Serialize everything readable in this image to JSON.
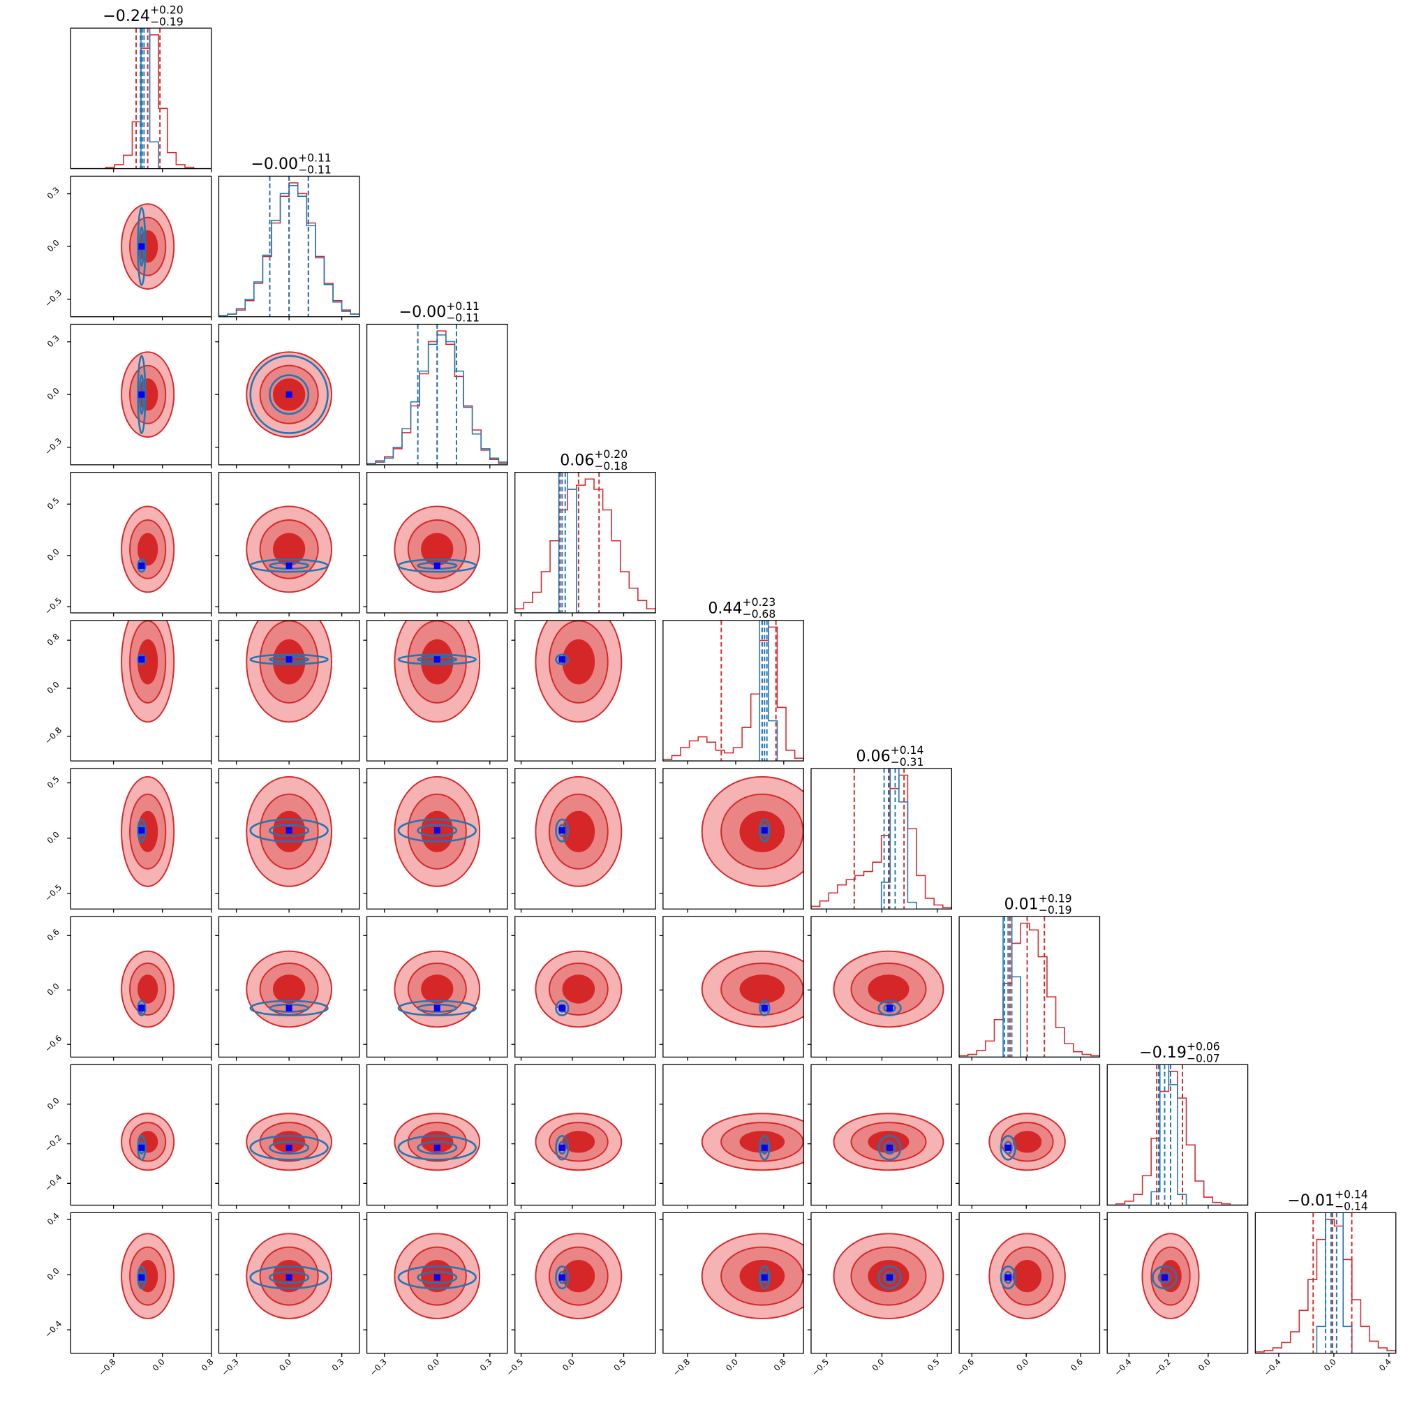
{
  "chart_data": {
    "type": "corner",
    "red_color": "#d62728",
    "blue_color": "#1f77b4",
    "truth_color": "#0000ff",
    "params": [
      {
        "xlim": [
          -1.5,
          0.8
        ],
        "ticks": [
          {
            "value": -0.8,
            "label": "−0.8"
          },
          {
            "value": 0,
            "label": "0.0"
          },
          0.8
        ],
        "median": -0.24,
        "plus": 0.2,
        "minus": 0.19,
        "median_label": "−0.24",
        "plus_label": "+0.20",
        "minus_label": "−0.19",
        "truth": -0.34,
        "blue_q": [
          -0.36,
          -0.33,
          -0.3
        ],
        "red_hist": [
          0,
          0,
          0,
          0,
          1,
          3,
          10,
          35,
          90,
          100,
          45,
          12,
          3,
          1,
          0,
          0
        ],
        "blue_hist": [
          0,
          0,
          0,
          0,
          0,
          0,
          0,
          0,
          320,
          20,
          0,
          0,
          0,
          0,
          0,
          0
        ]
      },
      {
        "xlim": [
          -0.4,
          0.4
        ],
        "ticks": [
          {
            "value": -0.3,
            "label": "−0.3"
          },
          {
            "value": 0,
            "label": "0.0"
          },
          0.3
        ],
        "median": 0,
        "plus": 0.11,
        "minus": 0.11,
        "median_label": "−0.00",
        "plus_label": "+0.11",
        "minus_label": "−0.11",
        "truth": 0,
        "blue_q": [
          -0.11,
          0,
          0.11
        ],
        "red_hist": [
          1,
          2,
          5,
          12,
          25,
          45,
          70,
          90,
          100,
          92,
          70,
          45,
          25,
          12,
          5,
          2
        ],
        "blue_hist": [
          1,
          2,
          6,
          13,
          26,
          46,
          72,
          92,
          98,
          90,
          68,
          44,
          24,
          11,
          4,
          2
        ]
      },
      {
        "xlim": [
          -0.4,
          0.4
        ],
        "ticks": [
          {
            "value": -0.3,
            "label": "−0.3"
          },
          {
            "value": 0,
            "label": "0.0"
          },
          0.3
        ],
        "median": 0,
        "plus": 0.11,
        "minus": 0.11,
        "median_label": "−0.00",
        "plus_label": "+0.11",
        "minus_label": "−0.11",
        "truth": 0,
        "blue_q": [
          -0.11,
          0,
          0.11
        ],
        "red_hist": [
          1,
          3,
          6,
          12,
          24,
          44,
          68,
          92,
          100,
          90,
          66,
          44,
          26,
          11,
          4,
          1
        ],
        "blue_hist": [
          1,
          2,
          5,
          13,
          27,
          47,
          70,
          90,
          97,
          92,
          70,
          43,
          23,
          12,
          5,
          2
        ]
      },
      {
        "xlim": [
          -0.56,
          0.81
        ],
        "ticks": [
          {
            "value": -0.5,
            "label": "−0.5"
          },
          {
            "value": 0,
            "label": "0.0"
          },
          0.5
        ],
        "median": 0.06,
        "plus": 0.2,
        "minus": 0.18,
        "median_label": "0.06",
        "plus_label": "+0.20",
        "minus_label": "−0.18",
        "truth": -0.1,
        "blue_q": [
          -0.13,
          -0.1,
          -0.07
        ],
        "red_hist": [
          2,
          5,
          10,
          20,
          35,
          50,
          60,
          62,
          65,
          60,
          50,
          35,
          20,
          12,
          6,
          2
        ],
        "blue_hist": [
          0,
          0,
          0,
          0,
          0,
          150,
          60,
          0,
          0,
          0,
          0,
          0,
          0,
          0,
          0,
          0
        ]
      },
      {
        "xlim": [
          -1.21,
          1.13
        ],
        "ticks": [
          {
            "value": -0.8,
            "label": "−0.8"
          },
          {
            "value": 0,
            "label": "0.0"
          },
          0.8
        ],
        "median": 0.44,
        "plus": 0.23,
        "minus": 0.68,
        "median_label": "0.44",
        "plus_label": "+0.23",
        "minus_label": "−0.68",
        "truth": 0.48,
        "blue_q": [
          0.44,
          0.48,
          0.52
        ],
        "red_hist": [
          1,
          4,
          10,
          15,
          18,
          14,
          8,
          6,
          10,
          25,
          50,
          90,
          100,
          40,
          8,
          2
        ],
        "blue_hist": [
          0,
          0,
          0,
          0,
          0,
          0,
          0,
          0,
          0,
          0,
          0,
          140,
          30,
          0,
          0,
          0
        ]
      },
      {
        "xlim": [
          -0.64,
          0.63
        ],
        "ticks": [
          {
            "value": -0.5,
            "label": "−0.5"
          },
          {
            "value": 0,
            "label": "0.0"
          },
          0.5
        ],
        "median": 0.06,
        "plus": 0.14,
        "minus": 0.31,
        "median_label": "0.06",
        "plus_label": "+0.14",
        "minus_label": "−0.31",
        "truth": 0.07,
        "blue_q": [
          0.02,
          0.07,
          0.12
        ],
        "red_hist": [
          2,
          6,
          12,
          18,
          22,
          25,
          28,
          35,
          55,
          90,
          100,
          60,
          25,
          8,
          3,
          1
        ],
        "blue_hist": [
          0,
          0,
          0,
          0,
          0,
          0,
          0,
          0,
          20,
          120,
          80,
          5,
          0,
          0,
          0,
          0
        ]
      },
      {
        "xlim": [
          -0.74,
          0.81
        ],
        "ticks": [
          {
            "value": -0.6,
            "label": "−0.6"
          },
          {
            "value": 0,
            "label": "0.0"
          },
          0.6
        ],
        "median": 0.01,
        "plus": 0.19,
        "minus": 0.19,
        "median_label": "0.01",
        "plus_label": "+0.19",
        "minus_label": "−0.19",
        "truth": -0.2,
        "blue_q": [
          -0.24,
          -0.2,
          -0.16
        ],
        "red_hist": [
          1,
          2,
          5,
          12,
          28,
          55,
          85,
          100,
          95,
          75,
          45,
          22,
          10,
          4,
          2,
          1
        ],
        "blue_hist": [
          0,
          0,
          0,
          0,
          0,
          130,
          60,
          0,
          0,
          0,
          0,
          0,
          0,
          0,
          0,
          0
        ]
      },
      {
        "xlim": [
          -0.51,
          0.2
        ],
        "ticks": [
          {
            "value": -0.4,
            "label": "−0.4"
          },
          {
            "value": -0.2,
            "label": "−0.2"
          },
          {
            "value": 0,
            "label": "0.0"
          }
        ],
        "median": -0.19,
        "plus": 0.06,
        "minus": 0.07,
        "median_label": "−0.19",
        "plus_label": "+0.06",
        "minus_label": "−0.07",
        "truth": -0.22,
        "blue_q": [
          -0.25,
          -0.22,
          -0.19
        ],
        "red_hist": [
          0,
          1,
          3,
          8,
          22,
          50,
          85,
          100,
          80,
          45,
          18,
          6,
          2,
          1,
          0,
          0
        ],
        "blue_hist": [
          0,
          0,
          0,
          0,
          0,
          10,
          110,
          90,
          8,
          0,
          0,
          0,
          0,
          0,
          0,
          0
        ]
      },
      {
        "xlim": [
          -0.57,
          0.45
        ],
        "ticks": [
          {
            "value": -0.4,
            "label": "−0.4"
          },
          {
            "value": 0,
            "label": "0.0"
          },
          0.4
        ],
        "median": -0.01,
        "plus": 0.14,
        "minus": 0.14,
        "median_label": "−0.01",
        "plus_label": "+0.14",
        "minus_label": "−0.14",
        "truth": -0.02,
        "blue_q": [
          -0.06,
          -0.02,
          0.02
        ],
        "red_hist": [
          1,
          2,
          4,
          8,
          16,
          32,
          55,
          85,
          100,
          95,
          70,
          40,
          20,
          9,
          4,
          2
        ],
        "blue_hist": [
          0,
          0,
          0,
          0,
          0,
          0,
          0,
          20,
          120,
          110,
          20,
          0,
          0,
          0,
          0,
          0
        ]
      }
    ]
  }
}
